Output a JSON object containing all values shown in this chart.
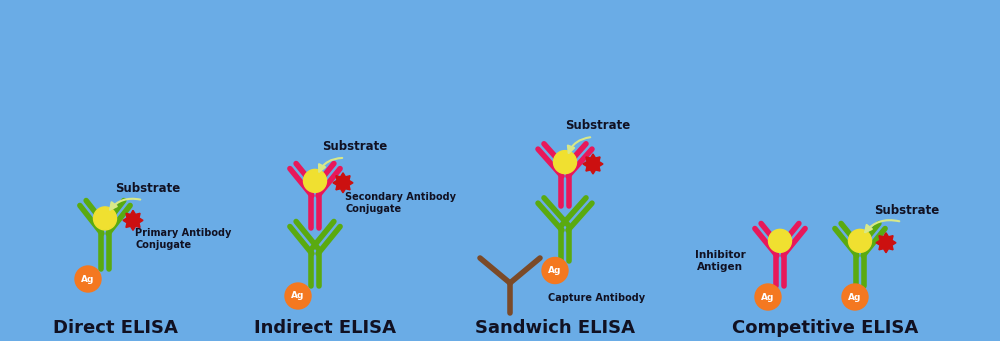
{
  "bg_color": "#6aace6",
  "title_fontsize": 13,
  "label_fontsize": 8.5,
  "titles": [
    "Direct ELISA",
    "Indirect ELISA",
    "Sandwich ELISA",
    "Competitive ELISA"
  ],
  "green_color": "#5aaa10",
  "pink_color": "#e8185a",
  "brown_color": "#7B4A28",
  "yellow_color": "#f0e030",
  "orange_color": "#f47820",
  "red_color": "#cc1010",
  "light_yellow_arrow": "#d8e888",
  "dark_text": "#111122"
}
